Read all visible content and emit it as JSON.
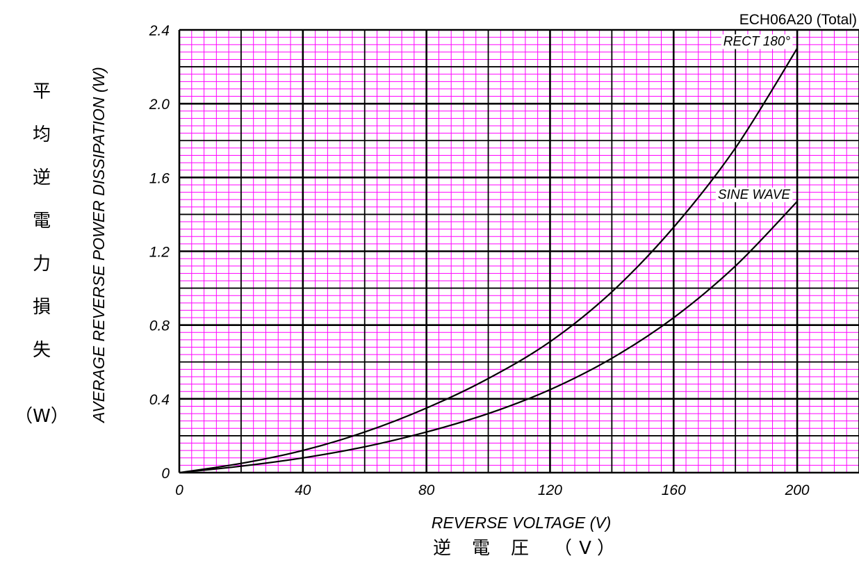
{
  "chart_data": {
    "type": "line",
    "model_label": "ECH06A20 (Total)",
    "xlabel": "REVERSE VOLTAGE (V)",
    "xlabel_jp": [
      "逆",
      "電",
      "圧",
      "（",
      "V",
      "）"
    ],
    "ylabel": "AVERAGE REVERSE POWER DISSIPATION (W)",
    "ylabel_jp": [
      "平",
      "均",
      "逆",
      "電",
      "力",
      "損",
      "失"
    ],
    "ylabel_jp_unit": "（W）",
    "xlim": [
      0,
      220
    ],
    "ylim": [
      0,
      2.4
    ],
    "x_ticks": [
      0,
      40,
      80,
      120,
      160,
      200
    ],
    "x_tick_labels": [
      "0",
      "40",
      "80",
      "120",
      "160",
      "200"
    ],
    "y_ticks": [
      0,
      0.4,
      0.8,
      1.2,
      1.6,
      2.0,
      2.4
    ],
    "y_tick_labels": [
      "0",
      "0.4",
      "0.8",
      "1.2",
      "1.6",
      "2.0",
      "2.4"
    ],
    "grid": true,
    "colors": {
      "major_grid": "#000000",
      "minor_grid": "#ff00ff",
      "curve": "#000000"
    },
    "series": [
      {
        "name": "RECT 180°",
        "x": [
          0,
          20,
          40,
          60,
          80,
          100,
          120,
          140,
          160,
          180,
          200
        ],
        "y": [
          0,
          0.05,
          0.12,
          0.22,
          0.35,
          0.51,
          0.71,
          0.98,
          1.33,
          1.76,
          2.3
        ]
      },
      {
        "name": "SINE WAVE",
        "x": [
          0,
          20,
          40,
          60,
          80,
          100,
          120,
          140,
          160,
          180,
          200
        ],
        "y": [
          0,
          0.035,
          0.08,
          0.14,
          0.22,
          0.32,
          0.45,
          0.62,
          0.84,
          1.12,
          1.47
        ]
      }
    ]
  }
}
